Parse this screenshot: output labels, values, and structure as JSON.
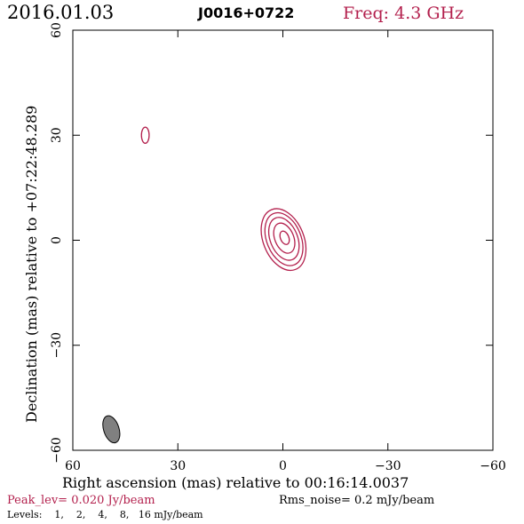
{
  "header": {
    "date": "2016.01.03",
    "source": "J0016+0722",
    "freq": "Freq: 4.3 GHz"
  },
  "footer": {
    "peak": "Peak_lev=  0.020 Jy/beam",
    "rms": "Rms_noise=   0.2 mJy/beam",
    "levels": "Levels:    1,    2,    4,    8,   16 mJy/beam"
  },
  "colors": {
    "axis": "#000000",
    "contour": "#b3204d",
    "beam_fill": "#808080",
    "freq_text": "#b3204d",
    "peak_text": "#b3204d"
  },
  "chart_data": {
    "type": "contour",
    "xlabel": "Right ascension (mas) relative to 00:16:14.0037",
    "ylabel": "Declination (mas) relative to +07:22:48.289",
    "xlim": [
      60,
      -60
    ],
    "ylim": [
      -60,
      60
    ],
    "xticks": [
      60,
      30,
      0,
      -30,
      -60
    ],
    "yticks": [
      60,
      30,
      0,
      -30,
      -60
    ],
    "xtick_labels": [
      "60",
      "30",
      "0",
      "−30",
      "−60"
    ],
    "ytick_labels": [
      "60",
      "30",
      "0",
      "−30",
      "−60"
    ],
    "levels_mJy": [
      1,
      2,
      4,
      8,
      16
    ],
    "contours": [
      {
        "level": 1,
        "cx": -0.2,
        "cy": 0.2,
        "rx": 5.8,
        "ry": 9.2,
        "angle": -22
      },
      {
        "level": 2,
        "cx": -0.3,
        "cy": 0.3,
        "rx": 4.9,
        "ry": 7.9,
        "angle": -22
      },
      {
        "level": 4,
        "cx": -0.3,
        "cy": 0.4,
        "rx": 3.9,
        "ry": 6.4,
        "angle": -22
      },
      {
        "level": 8,
        "cx": -0.4,
        "cy": 0.6,
        "rx": 2.7,
        "ry": 4.5,
        "angle": -22
      },
      {
        "level": 16,
        "cx": -0.5,
        "cy": 0.7,
        "rx": 1.2,
        "ry": 2.0,
        "angle": -22
      },
      {
        "level": 1,
        "cx": 39.3,
        "cy": 30.0,
        "rx": 1.1,
        "ry": 2.3,
        "angle": 0
      }
    ],
    "beam": {
      "cx": 49.0,
      "cy": -54.0,
      "rx": 2.2,
      "ry": 4.0,
      "angle": -18
    }
  }
}
